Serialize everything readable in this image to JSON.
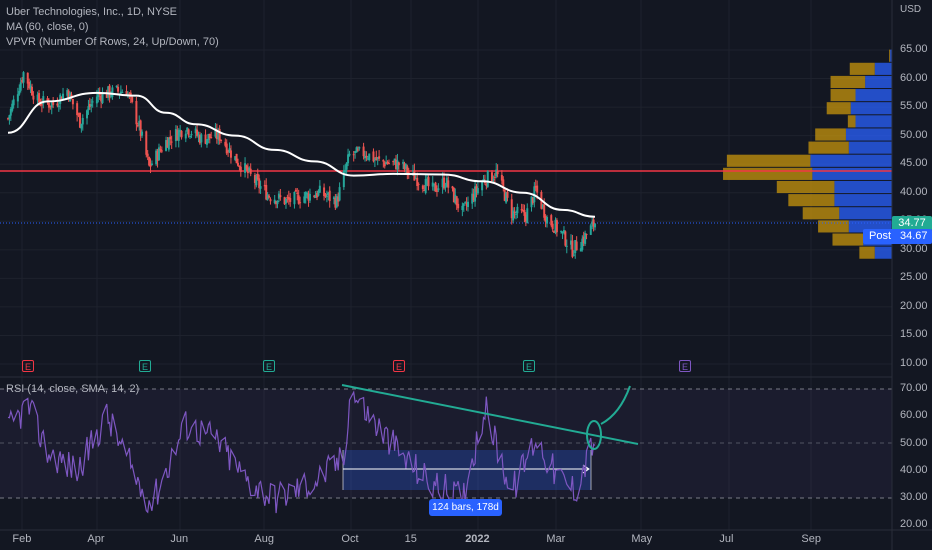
{
  "header": {
    "title": "Uber Technologies, Inc., 1D, NYSE",
    "ma_label": "MA (60, close, 0)",
    "vpvr_label": "VPVR (Number Of Rows, 24, Up/Down, 70)",
    "currency": "USD"
  },
  "price_axis": {
    "ticks": [
      "65.00",
      "60.00",
      "55.00",
      "50.00",
      "45.00",
      "40.00",
      "35.00",
      "30.00",
      "25.00",
      "20.00",
      "15.00",
      "10.00"
    ]
  },
  "rsi_panel": {
    "label": "RSI (14, close, SMA, 14, 2)",
    "ticks": [
      "70.00",
      "60.00",
      "50.00",
      "40.00",
      "30.00",
      "20.00"
    ]
  },
  "time_axis": {
    "labels": [
      "Feb",
      "Apr",
      "Jun",
      "Aug",
      "Oct",
      "15",
      "2022",
      "Mar",
      "May",
      "Jul",
      "Sep"
    ]
  },
  "badges": {
    "last_price": "34.77",
    "post_label": "Post",
    "post_price": "34.67",
    "range_measure": "124 bars, 178d"
  },
  "earnings_markers": [
    {
      "label": "E",
      "type": "negative"
    },
    {
      "label": "E",
      "type": "positive"
    },
    {
      "label": "E",
      "type": "positive"
    },
    {
      "label": "E",
      "type": "negative"
    },
    {
      "label": "E",
      "type": "positive"
    },
    {
      "label": "E",
      "type": "upcoming"
    }
  ],
  "colors": {
    "background": "#131722",
    "up": "#26a69a",
    "down": "#ef5350",
    "ma": "#ffffff",
    "rsi": "#7e57c2",
    "trendline": "#22ab94",
    "horizontal_line": "#f23645",
    "vpvr_up": "#2962ff",
    "vpvr_down": "#c8960c",
    "accent": "#2962ff"
  },
  "chart_data": {
    "type": "candlestick",
    "symbol": "Uber Technologies, Inc.",
    "interval": "1D",
    "exchange": "NYSE",
    "x_range": [
      "2021-02",
      "2022-03"
    ],
    "price_ylim": [
      10,
      65
    ],
    "key_levels": {
      "horizontal_line": 44.0,
      "last_price": 34.77,
      "post_market": 34.67
    },
    "close_path": [
      {
        "date": "2021-02-01",
        "close": 53.0
      },
      {
        "date": "2021-02-12",
        "close": 61.0
      },
      {
        "date": "2021-02-22",
        "close": 56.0
      },
      {
        "date": "2021-03-05",
        "close": 55.5
      },
      {
        "date": "2021-03-15",
        "close": 58.0
      },
      {
        "date": "2021-03-24",
        "close": 52.5
      },
      {
        "date": "2021-04-05",
        "close": 57.0
      },
      {
        "date": "2021-04-14",
        "close": 57.5
      },
      {
        "date": "2021-04-26",
        "close": 58.0
      },
      {
        "date": "2021-05-05",
        "close": 51.5
      },
      {
        "date": "2021-05-12",
        "close": 44.5
      },
      {
        "date": "2021-05-24",
        "close": 49.0
      },
      {
        "date": "2021-06-07",
        "close": 51.5
      },
      {
        "date": "2021-06-18",
        "close": 49.5
      },
      {
        "date": "2021-07-01",
        "close": 50.0
      },
      {
        "date": "2021-07-12",
        "close": 46.0
      },
      {
        "date": "2021-07-26",
        "close": 42.0
      },
      {
        "date": "2021-08-05",
        "close": 39.5
      },
      {
        "date": "2021-08-18",
        "close": 38.5
      },
      {
        "date": "2021-08-31",
        "close": 39.5
      },
      {
        "date": "2021-09-10",
        "close": 40.0
      },
      {
        "date": "2021-09-22",
        "close": 38.5
      },
      {
        "date": "2021-10-01",
        "close": 46.5
      },
      {
        "date": "2021-10-12",
        "close": 47.0
      },
      {
        "date": "2021-10-22",
        "close": 45.5
      },
      {
        "date": "2021-11-05",
        "close": 45.0
      },
      {
        "date": "2021-11-15",
        "close": 43.0
      },
      {
        "date": "2021-11-29",
        "close": 40.5
      },
      {
        "date": "2021-12-08",
        "close": 42.0
      },
      {
        "date": "2021-12-20",
        "close": 36.5
      },
      {
        "date": "2022-01-03",
        "close": 42.0
      },
      {
        "date": "2022-01-13",
        "close": 43.5
      },
      {
        "date": "2022-01-24",
        "close": 36.5
      },
      {
        "date": "2022-02-03",
        "close": 36.0
      },
      {
        "date": "2022-02-10",
        "close": 40.5
      },
      {
        "date": "2022-02-18",
        "close": 35.5
      },
      {
        "date": "2022-02-28",
        "close": 33.0
      },
      {
        "date": "2022-03-08",
        "close": 30.0
      },
      {
        "date": "2022-03-16",
        "close": 32.0
      },
      {
        "date": "2022-03-24",
        "close": 34.77
      }
    ],
    "ma_60": [
      {
        "date": "2021-02-01",
        "value": 50.5
      },
      {
        "date": "2021-03-01",
        "value": 56.0
      },
      {
        "date": "2021-04-05",
        "value": 57.5
      },
      {
        "date": "2021-05-03",
        "value": 57.0
      },
      {
        "date": "2021-05-24",
        "value": 54.0
      },
      {
        "date": "2021-06-14",
        "value": 52.0
      },
      {
        "date": "2021-07-12",
        "value": 50.0
      },
      {
        "date": "2021-08-09",
        "value": 47.5
      },
      {
        "date": "2021-09-06",
        "value": 45.5
      },
      {
        "date": "2021-10-04",
        "value": 43.0
      },
      {
        "date": "2021-11-01",
        "value": 43.3
      },
      {
        "date": "2021-12-06",
        "value": 43.2
      },
      {
        "date": "2022-01-03",
        "value": 42.0
      },
      {
        "date": "2022-02-01",
        "value": 40.0
      },
      {
        "date": "2022-03-01",
        "value": 37.0
      },
      {
        "date": "2022-03-24",
        "value": 35.8
      }
    ],
    "rsi_ylim": [
      20,
      70
    ],
    "rsi_band": [
      30,
      70
    ],
    "rsi_path": [
      {
        "date": "2021-02-01",
        "value": 55
      },
      {
        "date": "2021-02-15",
        "value": 64
      },
      {
        "date": "2021-03-01",
        "value": 47
      },
      {
        "date": "2021-03-22",
        "value": 40
      },
      {
        "date": "2021-04-12",
        "value": 60
      },
      {
        "date": "2021-05-05",
        "value": 35
      },
      {
        "date": "2021-05-14",
        "value": 28
      },
      {
        "date": "2021-06-07",
        "value": 57
      },
      {
        "date": "2021-06-28",
        "value": 52
      },
      {
        "date": "2021-07-19",
        "value": 37
      },
      {
        "date": "2021-08-09",
        "value": 30
      },
      {
        "date": "2021-09-06",
        "value": 36
      },
      {
        "date": "2021-09-28",
        "value": 45
      },
      {
        "date": "2021-10-01",
        "value": 70
      },
      {
        "date": "2021-10-18",
        "value": 58
      },
      {
        "date": "2021-11-08",
        "value": 45
      },
      {
        "date": "2021-11-29",
        "value": 35
      },
      {
        "date": "2021-12-20",
        "value": 30
      },
      {
        "date": "2022-01-05",
        "value": 63
      },
      {
        "date": "2022-01-24",
        "value": 32
      },
      {
        "date": "2022-02-10",
        "value": 52
      },
      {
        "date": "2022-02-25",
        "value": 38
      },
      {
        "date": "2022-03-10",
        "value": 33
      },
      {
        "date": "2022-03-24",
        "value": 52
      }
    ],
    "rsi_trendline": {
      "start": {
        "date": "2021-10-01",
        "value": 70
      },
      "end": {
        "date": "2022-05-01",
        "value": 50
      }
    },
    "rsi_measure_range": {
      "from": "2021-10-01",
      "to": "2022-03-24",
      "low": 33,
      "high": 48,
      "label": "124 bars, 178d"
    },
    "vpvr": [
      {
        "price": 64.0,
        "up": 2,
        "down": 1
      },
      {
        "price": 61.7,
        "up": 18,
        "down": 26
      },
      {
        "price": 59.4,
        "up": 28,
        "down": 36
      },
      {
        "price": 57.1,
        "up": 38,
        "down": 26
      },
      {
        "price": 54.8,
        "up": 43,
        "down": 25
      },
      {
        "price": 52.5,
        "up": 38,
        "down": 8
      },
      {
        "price": 50.2,
        "up": 48,
        "down": 32
      },
      {
        "price": 47.9,
        "up": 45,
        "down": 42
      },
      {
        "price": 45.6,
        "up": 85,
        "down": 87
      },
      {
        "price": 43.3,
        "up": 83,
        "down": 93
      },
      {
        "price": 41.0,
        "up": 60,
        "down": 60
      },
      {
        "price": 38.7,
        "up": 60,
        "down": 48
      },
      {
        "price": 36.4,
        "up": 55,
        "down": 38
      },
      {
        "price": 34.1,
        "up": 45,
        "down": 32
      },
      {
        "price": 31.8,
        "up": 30,
        "down": 32
      },
      {
        "price": 29.5,
        "up": 18,
        "down": 16
      }
    ]
  }
}
